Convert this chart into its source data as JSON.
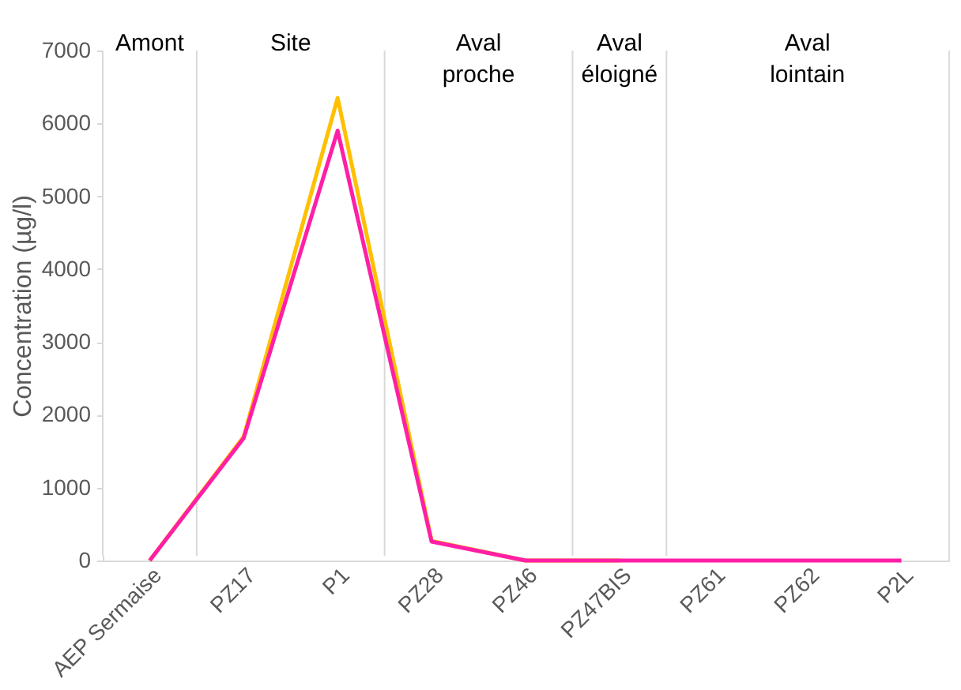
{
  "chart_data": {
    "type": "line",
    "ylabel": "Concentration (µg/l)",
    "categories": [
      "AEP Sermaise",
      "PZ17",
      "P1",
      "PZ28",
      "PZ46",
      "PZ47BIS",
      "PZ61",
      "PZ62",
      "P2L"
    ],
    "series": [
      {
        "color": "#ffc000",
        "values": [
          0,
          1700,
          6350,
          270,
          0,
          0,
          null,
          null,
          null
        ]
      },
      {
        "color": "#ff1fa6",
        "values": [
          0,
          1680,
          5900,
          260,
          0,
          0,
          0,
          0,
          0
        ]
      }
    ],
    "ylim": [
      0,
      7000
    ],
    "yticks": [
      0,
      1000,
      2000,
      3000,
      4000,
      5000,
      6000,
      7000
    ],
    "bands": [
      {
        "axis": "x",
        "from": "AEP Sermaise",
        "to": "AEP Sermaise",
        "label": "Amont",
        "color": "#ffffff"
      },
      {
        "axis": "x",
        "from": "PZ17",
        "to": "P1",
        "label": "Site",
        "color": "#ffffff"
      },
      {
        "axis": "x",
        "from": "PZ28",
        "to": "PZ46",
        "label": "Aval proche",
        "color": "#ffffff"
      },
      {
        "axis": "x",
        "from": "PZ47BIS",
        "to": "PZ47BIS",
        "label": "Aval éloigné",
        "color": "#ffffff"
      },
      {
        "axis": "x",
        "from": "PZ61",
        "to": "P2L",
        "label": "Aval lointain",
        "color": "#ffffff"
      }
    ],
    "grid": false,
    "marker": "none",
    "line_style": "solid"
  }
}
